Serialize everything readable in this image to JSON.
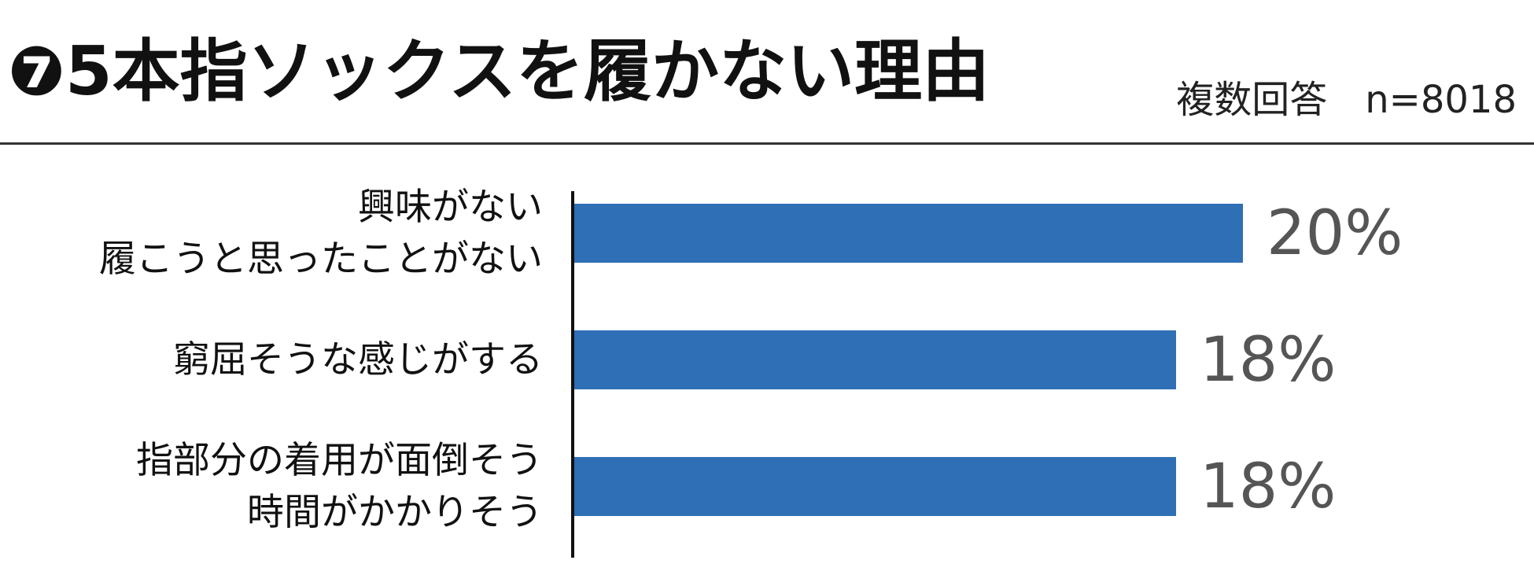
{
  "chart_data": {
    "type": "bar",
    "orientation": "horizontal",
    "title": "❼5本指ソックスを履かない理由",
    "subtitle": "複数回答　n=8018",
    "categories": [
      "興味がない\n履こうと思ったことがない",
      "窮屈そうな感じがする",
      "指部分の着用が面倒そう\n時間がかかりそう"
    ],
    "values": [
      20,
      18,
      18
    ],
    "value_labels": [
      "20%",
      "18%",
      "18%"
    ],
    "color": "#2e6fb5",
    "xlim": [
      0,
      20
    ]
  }
}
